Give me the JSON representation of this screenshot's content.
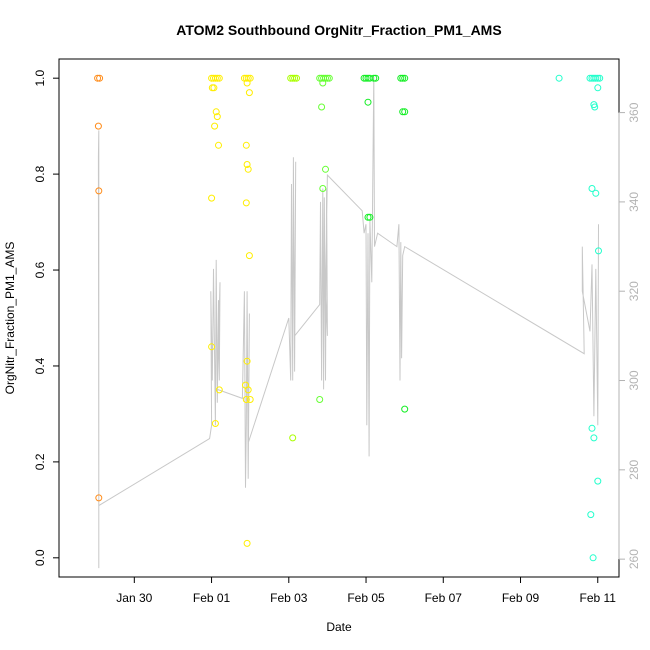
{
  "chart_data": {
    "type": "scatter",
    "title": "ATOM2 Southbound OrgNitr_Fraction_PM1_AMS",
    "xlabel": "Date",
    "ylabel": "OrgNitr_Fraction_PM1_AMS",
    "x_unit": "days since Jan 30",
    "xlim": [
      -1.95,
      12.55
    ],
    "ylim": [
      -0.04,
      1.04
    ],
    "x_ticks": [
      {
        "value": 0,
        "label": "Jan 30"
      },
      {
        "value": 2,
        "label": "Feb 01"
      },
      {
        "value": 4,
        "label": "Feb 03"
      },
      {
        "value": 6,
        "label": "Feb 05"
      },
      {
        "value": 8,
        "label": "Feb 07"
      },
      {
        "value": 10,
        "label": "Feb 09"
      },
      {
        "value": 12,
        "label": "Feb 11"
      }
    ],
    "y_ticks": [
      {
        "value": 0.0,
        "label": "0.0"
      },
      {
        "value": 0.2,
        "label": "0.2"
      },
      {
        "value": 0.4,
        "label": "0.4"
      },
      {
        "value": 0.6,
        "label": "0.6"
      },
      {
        "value": 0.8,
        "label": "0.8"
      },
      {
        "value": 1.0,
        "label": "1.0"
      }
    ],
    "y2_range": [
      256,
      372
    ],
    "y2_ticks": [
      {
        "value": 260,
        "label": "260"
      },
      {
        "value": 280,
        "label": "280"
      },
      {
        "value": 300,
        "label": "300"
      },
      {
        "value": 320,
        "label": "320"
      },
      {
        "value": 340,
        "label": "340"
      },
      {
        "value": 360,
        "label": "360"
      }
    ],
    "grid": false,
    "series": [
      {
        "name": "scatter-orange",
        "color": "#ff8c1a",
        "points": [
          [
            -0.95,
            1.0
          ],
          [
            -0.9,
            1.0
          ],
          [
            -0.93,
            0.9
          ],
          [
            -0.92,
            0.765
          ],
          [
            -0.92,
            0.125
          ]
        ]
      },
      {
        "name": "scatter-yellow",
        "color": "#ffee00",
        "points": [
          [
            2.0,
            1.0
          ],
          [
            2.05,
            1.0
          ],
          [
            2.1,
            1.0
          ],
          [
            2.15,
            1.0
          ],
          [
            2.2,
            1.0
          ],
          [
            2.02,
            0.98
          ],
          [
            2.06,
            0.98
          ],
          [
            2.12,
            0.93
          ],
          [
            2.08,
            0.9
          ],
          [
            2.15,
            0.92
          ],
          [
            2.18,
            0.86
          ],
          [
            2.0,
            0.75
          ],
          [
            2.0,
            0.44
          ],
          [
            2.2,
            0.35
          ],
          [
            2.1,
            0.28
          ],
          [
            2.85,
            1.0
          ],
          [
            2.9,
            1.0
          ],
          [
            2.95,
            1.0
          ],
          [
            3.0,
            1.0
          ],
          [
            2.92,
            0.99
          ],
          [
            2.98,
            0.97
          ],
          [
            2.9,
            0.86
          ],
          [
            2.92,
            0.82
          ],
          [
            2.95,
            0.81
          ],
          [
            2.9,
            0.74
          ],
          [
            2.98,
            0.63
          ],
          [
            2.92,
            0.41
          ],
          [
            2.88,
            0.36
          ],
          [
            2.95,
            0.35
          ],
          [
            2.9,
            0.33
          ],
          [
            3.0,
            0.33
          ],
          [
            2.92,
            0.03
          ]
        ]
      },
      {
        "name": "scatter-yellowgreen",
        "color": "#aaff00",
        "points": [
          [
            4.05,
            1.0
          ],
          [
            4.1,
            1.0
          ],
          [
            4.15,
            1.0
          ],
          [
            4.2,
            1.0
          ],
          [
            4.1,
            0.25
          ]
        ]
      },
      {
        "name": "scatter-green",
        "color": "#66ff33",
        "points": [
          [
            4.8,
            1.0
          ],
          [
            4.85,
            1.0
          ],
          [
            4.9,
            1.0
          ],
          [
            4.95,
            1.0
          ],
          [
            5.0,
            1.0
          ],
          [
            5.05,
            1.0
          ],
          [
            4.88,
            0.99
          ],
          [
            4.85,
            0.94
          ],
          [
            4.95,
            0.81
          ],
          [
            4.88,
            0.77
          ],
          [
            4.8,
            0.33
          ]
        ]
      },
      {
        "name": "scatter-brightgreen",
        "color": "#11ee22",
        "points": [
          [
            5.95,
            1.0
          ],
          [
            6.0,
            1.0
          ],
          [
            6.05,
            1.0
          ],
          [
            6.1,
            1.0
          ],
          [
            6.2,
            1.0
          ],
          [
            6.25,
            1.0
          ],
          [
            6.05,
            0.95
          ],
          [
            6.05,
            0.71
          ],
          [
            6.1,
            0.71
          ],
          [
            6.9,
            1.0
          ],
          [
            6.95,
            1.0
          ],
          [
            7.0,
            1.0
          ],
          [
            6.95,
            0.93
          ],
          [
            7.0,
            0.93
          ],
          [
            7.0,
            0.31
          ]
        ]
      },
      {
        "name": "scatter-cyan",
        "color": "#22ffcc",
        "points": [
          [
            11.0,
            1.0
          ],
          [
            11.8,
            1.0
          ],
          [
            11.85,
            1.0
          ],
          [
            11.9,
            1.0
          ],
          [
            11.95,
            1.0
          ],
          [
            12.0,
            1.0
          ],
          [
            12.05,
            1.0
          ],
          [
            12.0,
            0.98
          ],
          [
            11.9,
            0.945
          ],
          [
            11.92,
            0.94
          ],
          [
            11.85,
            0.77
          ],
          [
            11.95,
            0.76
          ],
          [
            12.02,
            0.64
          ],
          [
            11.85,
            0.27
          ],
          [
            11.9,
            0.25
          ],
          [
            12.0,
            0.16
          ],
          [
            11.82,
            0.09
          ],
          [
            11.88,
            0.0
          ]
        ]
      }
    ],
    "line_series": {
      "name": "secondary-axis-trace",
      "color": "#c8c8c8",
      "axis": "y2",
      "points": [
        [
          -0.92,
          258
        ],
        [
          -0.92,
          270
        ],
        [
          -0.93,
          350
        ],
        [
          -0.92,
          356
        ],
        [
          -0.92,
          272
        ],
        [
          1.95,
          287
        ],
        [
          2.0,
          290
        ],
        [
          1.98,
          320
        ],
        [
          2.02,
          300
        ],
        [
          2.05,
          325
        ],
        [
          2.1,
          290
        ],
        [
          2.12,
          327
        ],
        [
          2.15,
          295
        ],
        [
          2.18,
          318
        ],
        [
          2.2,
          300
        ],
        [
          2.22,
          322
        ],
        [
          2.15,
          298
        ],
        [
          2.8,
          296
        ],
        [
          2.85,
          320
        ],
        [
          2.88,
          276
        ],
        [
          2.9,
          290
        ],
        [
          2.92,
          320
        ],
        [
          2.95,
          278
        ],
        [
          2.98,
          315
        ],
        [
          2.95,
          286
        ],
        [
          4.0,
          314
        ],
        [
          4.05,
          300
        ],
        [
          4.07,
          344
        ],
        [
          4.1,
          300
        ],
        [
          4.12,
          350
        ],
        [
          4.15,
          302
        ],
        [
          4.18,
          349
        ],
        [
          4.15,
          310
        ],
        [
          4.8,
          317
        ],
        [
          4.82,
          340
        ],
        [
          4.85,
          300
        ],
        [
          4.88,
          343
        ],
        [
          4.9,
          298
        ],
        [
          4.92,
          341
        ],
        [
          4.95,
          300
        ],
        [
          4.98,
          343
        ],
        [
          5.0,
          310
        ],
        [
          4.95,
          321
        ],
        [
          5.0,
          346
        ],
        [
          5.9,
          338
        ],
        [
          5.95,
          333
        ],
        [
          6.0,
          335
        ],
        [
          6.02,
          290
        ],
        [
          6.05,
          333
        ],
        [
          6.08,
          283
        ],
        [
          6.1,
          336
        ],
        [
          6.15,
          322
        ],
        [
          6.2,
          368
        ],
        [
          6.22,
          330
        ],
        [
          6.3,
          333
        ],
        [
          6.8,
          330
        ],
        [
          6.85,
          335
        ],
        [
          6.88,
          300
        ],
        [
          6.9,
          331
        ],
        [
          6.92,
          305
        ],
        [
          6.95,
          328
        ],
        [
          7.0,
          330
        ],
        [
          11.65,
          306
        ],
        [
          11.6,
          330
        ],
        [
          11.6,
          320
        ],
        [
          11.8,
          311
        ],
        [
          11.85,
          326
        ],
        [
          11.9,
          292
        ],
        [
          11.95,
          325
        ],
        [
          12.0,
          290
        ],
        [
          12.02,
          335
        ]
      ]
    }
  }
}
